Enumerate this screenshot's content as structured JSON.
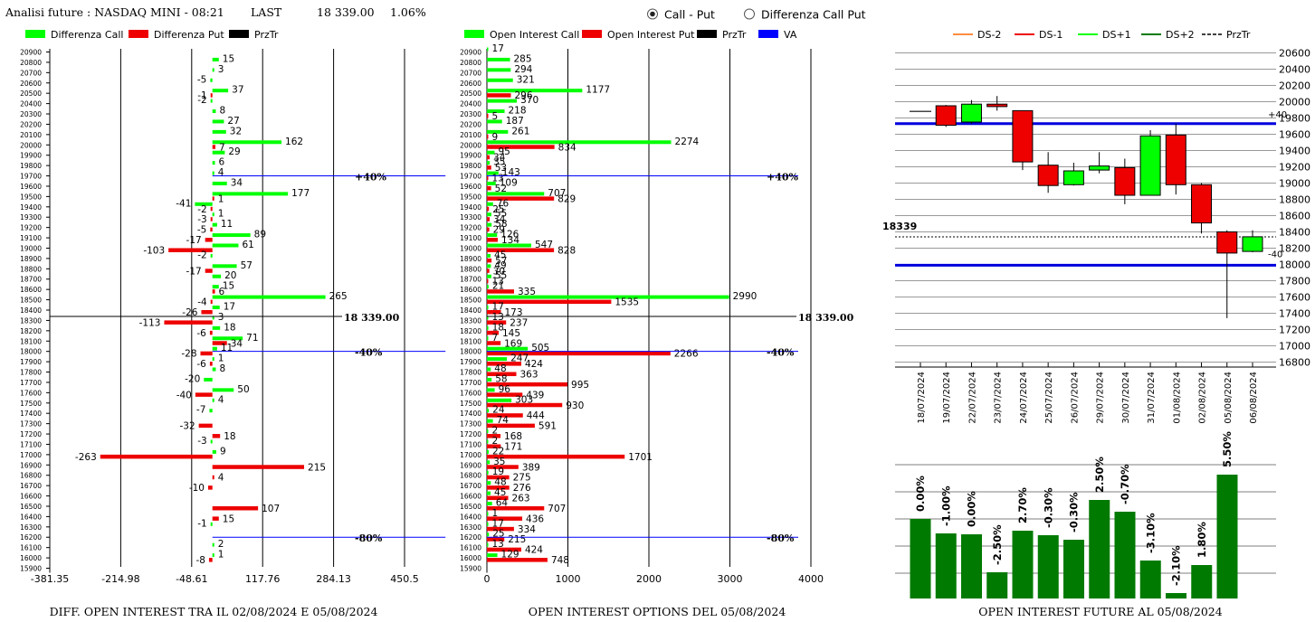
{
  "header": {
    "title": "Analisi future : NASDAQ MINI - 08:21",
    "last_label": "LAST",
    "last_value": "18 339.00",
    "change": "1.06%",
    "radio_options": [
      {
        "label": "Call - Put",
        "selected": true
      },
      {
        "label": "Differenza Call Put",
        "selected": false
      }
    ]
  },
  "colors": {
    "green": "#00ff00",
    "red": "#ee0000",
    "black": "#000000",
    "blue": "#0000ff",
    "dark_green": "#007a00",
    "orange": "#ff8c40"
  },
  "chart_data": [
    {
      "type": "bar",
      "orientation": "horizontal",
      "title": "DIFF. OPEN INTEREST TRA IL 02/08/2024 E 05/08/2024",
      "legend": [
        "Differenza Call",
        "Differenza Put",
        "PrzTr"
      ],
      "x_ticks": [
        "-381.35",
        "-214.98",
        "-48.61",
        "117.76",
        "284.13",
        "450.5"
      ],
      "xlim": [
        -381.35,
        450.5
      ],
      "categories": [
        20900,
        20800,
        20700,
        20600,
        20500,
        20400,
        20300,
        20200,
        20100,
        20000,
        19900,
        19800,
        19700,
        19600,
        19500,
        19400,
        19300,
        19200,
        19100,
        19000,
        18900,
        18800,
        18700,
        18600,
        18500,
        18400,
        18300,
        18200,
        18100,
        18000,
        17900,
        17800,
        17700,
        17600,
        17500,
        17400,
        17300,
        17200,
        17100,
        17000,
        16900,
        16800,
        16700,
        16600,
        16500,
        16400,
        16300,
        16200,
        16100,
        16000,
        15900
      ],
      "series": [
        {
          "name": "Differenza Call",
          "values": [
            0,
            15,
            3,
            -5,
            37,
            -2,
            8,
            27,
            32,
            162,
            29,
            6,
            4,
            34,
            177,
            -41,
            1,
            11,
            89,
            61,
            -2,
            57,
            20,
            15,
            265,
            17,
            3,
            18,
            71,
            11,
            1,
            8,
            -20,
            50,
            4,
            -7,
            0,
            0,
            -3,
            9,
            0,
            0,
            0,
            0,
            0,
            0,
            -1,
            0,
            2,
            1,
            0
          ]
        },
        {
          "name": "Differenza Put",
          "values": [
            0,
            0,
            0,
            0,
            -1,
            0,
            0,
            0,
            0,
            7,
            0,
            0,
            0,
            0,
            1,
            -2,
            -3,
            -5,
            -17,
            -103,
            0,
            -17,
            0,
            6,
            -4,
            -26,
            -113,
            -6,
            34,
            -28,
            -6,
            0,
            0,
            -40,
            0,
            0,
            -32,
            18,
            0,
            -263,
            215,
            4,
            -10,
            0,
            107,
            15,
            0,
            0,
            0,
            -8,
            0
          ]
        }
      ],
      "annotations": [
        {
          "price": 19700,
          "label": "+40%"
        },
        {
          "price": 18339,
          "label": "18 339.00"
        },
        {
          "price": 18000,
          "label": "-40%"
        },
        {
          "price": 16200,
          "label": "-80%"
        }
      ]
    },
    {
      "type": "bar",
      "orientation": "horizontal",
      "title": "OPEN INTEREST OPTIONS DEL 05/08/2024",
      "legend": [
        "Open Interest Call",
        "Open Interest Put",
        "PrzTr",
        "VA"
      ],
      "x_ticks": [
        "0",
        "1000",
        "2000",
        "3000",
        "4000"
      ],
      "xlim": [
        0,
        4000
      ],
      "categories": [
        20900,
        20800,
        20700,
        20600,
        20500,
        20400,
        20300,
        20200,
        20100,
        20000,
        19900,
        19800,
        19700,
        19600,
        19500,
        19400,
        19300,
        19200,
        19100,
        19000,
        18900,
        18800,
        18700,
        18600,
        18500,
        18400,
        18300,
        18200,
        18100,
        18000,
        17900,
        17800,
        17700,
        17600,
        17500,
        17400,
        17300,
        17200,
        17100,
        17000,
        16900,
        16800,
        16700,
        16600,
        16500,
        16400,
        16300,
        16200,
        16100,
        16000,
        15900
      ],
      "series": [
        {
          "name": "Open Interest Call",
          "values": [
            17,
            285,
            294,
            321,
            1177,
            370,
            218,
            187,
            261,
            2274,
            95,
            35,
            143,
            109,
            707,
            76,
            55,
            58,
            126,
            547,
            45,
            49,
            55,
            21,
            2990,
            17,
            13,
            18,
            7,
            505,
            247,
            48,
            58,
            96,
            303,
            24,
            74,
            2,
            2,
            22,
            35,
            19,
            48,
            45,
            64,
            1,
            17,
            25,
            13,
            129,
            0
          ]
        },
        {
          "name": "Open Interest Put",
          "values": [
            0,
            0,
            0,
            0,
            296,
            0,
            5,
            0,
            9,
            834,
            34,
            53,
            13,
            52,
            829,
            25,
            34,
            29,
            134,
            828,
            57,
            30,
            13,
            335,
            1535,
            173,
            237,
            145,
            169,
            2266,
            424,
            363,
            995,
            439,
            930,
            444,
            591,
            168,
            171,
            1701,
            389,
            275,
            276,
            263,
            707,
            436,
            334,
            215,
            424,
            748,
            0
          ]
        }
      ],
      "annotations": [
        {
          "price": 19700,
          "label": "+40%"
        },
        {
          "price": 18339,
          "label": "18 339.00"
        },
        {
          "price": 18000,
          "label": "-40%"
        },
        {
          "price": 16200,
          "label": "-80%"
        }
      ]
    },
    {
      "type": "candlestick",
      "legend": [
        "DS-2",
        "DS-1",
        "DS+1",
        "DS+2",
        "PrzTr"
      ],
      "y_ticks": [
        "20600",
        "20400",
        "20200",
        "20000",
        "19800",
        "19600",
        "19400",
        "19200",
        "19000",
        "18800",
        "18600",
        "18400",
        "18200",
        "18000",
        "17800",
        "17600",
        "17400",
        "17200",
        "17000",
        "16800"
      ],
      "ylim": [
        16800,
        20600
      ],
      "categories": [
        "18/07/2024",
        "19/07/2024",
        "22/07/2024",
        "23/07/2024",
        "24/07/2024",
        "25/07/2024",
        "26/07/2024",
        "29/07/2024",
        "30/07/2024",
        "31/07/2024",
        "01/08/2024",
        "02/08/2024",
        "05/08/2024",
        "06/08/2024"
      ],
      "candles": [
        {
          "date": "18/07/2024",
          "open": 19880,
          "high": 19880,
          "low": 19880,
          "close": 19880
        },
        {
          "date": "19/07/2024",
          "open": 19950,
          "high": 19960,
          "low": 19690,
          "close": 19710
        },
        {
          "date": "22/07/2024",
          "open": 19750,
          "high": 20020,
          "low": 19730,
          "close": 19970
        },
        {
          "date": "23/07/2024",
          "open": 19970,
          "high": 20070,
          "low": 19890,
          "close": 19940
        },
        {
          "date": "24/07/2024",
          "open": 19890,
          "high": 19890,
          "low": 19160,
          "close": 19260
        },
        {
          "date": "25/07/2024",
          "open": 19220,
          "high": 19380,
          "low": 18880,
          "close": 18970
        },
        {
          "date": "26/07/2024",
          "open": 18980,
          "high": 19250,
          "low": 18970,
          "close": 19150
        },
        {
          "date": "29/07/2024",
          "open": 19160,
          "high": 19380,
          "low": 19120,
          "close": 19210
        },
        {
          "date": "30/07/2024",
          "open": 19190,
          "high": 19300,
          "low": 18740,
          "close": 18850
        },
        {
          "date": "31/07/2024",
          "open": 18850,
          "high": 19650,
          "low": 18850,
          "close": 19580
        },
        {
          "date": "01/08/2024",
          "open": 19590,
          "high": 19730,
          "low": 18860,
          "close": 18980
        },
        {
          "date": "02/08/2024",
          "open": 18980,
          "high": 19000,
          "low": 18380,
          "close": 18510
        },
        {
          "date": "05/08/2024",
          "open": 18400,
          "high": 18420,
          "low": 17340,
          "close": 18140
        },
        {
          "date": "06/08/2024",
          "open": 18160,
          "high": 18420,
          "low": 18150,
          "close": 18340
        }
      ],
      "price_level": {
        "value": 18339,
        "label": "18339"
      },
      "bands": [
        {
          "value": 19730,
          "label": "+40"
        },
        {
          "value": 17990,
          "label": "-40"
        }
      ]
    },
    {
      "type": "bar",
      "title": "OPEN INTEREST FUTURE AL 05/08/2024",
      "categories": [
        "18/07/2024",
        "19/07/2024",
        "22/07/2024",
        "23/07/2024",
        "24/07/2024",
        "25/07/2024",
        "26/07/2024",
        "29/07/2024",
        "30/07/2024",
        "31/07/2024",
        "01/08/2024",
        "02/08/2024",
        "05/08/2024"
      ],
      "value_labels": [
        "0.00%",
        "-1.00%",
        "0.00%",
        "-2.50%",
        "2.70%",
        "-0.30%",
        "-0.30%",
        "2.50%",
        "-0.70%",
        "-3.10%",
        "-2.10%",
        "1.80%",
        "5.50%"
      ],
      "values": [
        0.0,
        -1.0,
        0.0,
        -2.5,
        2.7,
        -0.3,
        -0.3,
        2.5,
        -0.7,
        -3.1,
        -2.1,
        1.8,
        5.5
      ],
      "heights": [
        88,
        72,
        71,
        29,
        75,
        70,
        65,
        109,
        96,
        42,
        6,
        37,
        137
      ]
    }
  ]
}
